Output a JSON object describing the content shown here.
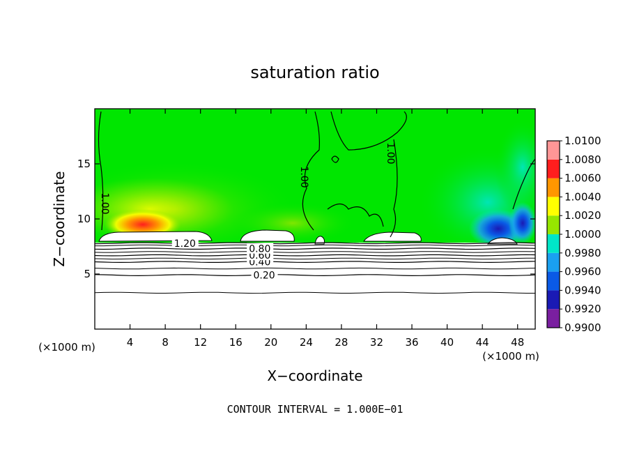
{
  "chart_data": {
    "type": "heatmap",
    "title": "saturation ratio",
    "xlabel": "X−coordinate",
    "ylabel": "Z−coordinate",
    "x_unit": "(×1000 m)",
    "y_unit": "(×1000 m)",
    "xlim": [
      0,
      50
    ],
    "ylim": [
      0,
      20
    ],
    "x_ticks": [
      4,
      8,
      12,
      16,
      20,
      24,
      28,
      32,
      36,
      40,
      44,
      48
    ],
    "y_ticks": [
      5,
      10,
      15
    ],
    "footer": "CONTOUR INTERVAL = 1.000E−01",
    "colorbar": {
      "values": [
        0.99,
        0.992,
        0.994,
        0.996,
        0.998,
        1.0,
        1.002,
        1.004,
        1.006,
        1.008,
        1.01
      ],
      "labels": [
        "0.9900",
        "0.9920",
        "0.9940",
        "0.9960",
        "0.9980",
        "1.0000",
        "1.0020",
        "1.0040",
        "1.0060",
        "1.0080",
        "1.0100"
      ],
      "colors": [
        "#7a1fa0",
        "#1a1ab4",
        "#0a5ae6",
        "#1aa0f0",
        "#00e6c8",
        "#00e600",
        "#96e600",
        "#ffff00",
        "#ff9600",
        "#ff1e1e",
        "#ff9696"
      ]
    },
    "contour_levels": [
      {
        "label": "0.20",
        "z": 4.9,
        "label_x": 18
      },
      {
        "label": "0.40",
        "z": 6.1,
        "label_x": 17.5
      },
      {
        "label": "0.60",
        "z": 6.7,
        "label_x": 17.5
      },
      {
        "label": "0.80",
        "z": 7.3,
        "label_x": 17.5
      },
      {
        "label": "1.20",
        "z": 7.8,
        "label_x": 9
      }
    ],
    "field_regions": [
      {
        "name": "supersaturated",
        "x": [
          3,
          9
        ],
        "z": [
          8.5,
          11
        ],
        "value": 1.006
      },
      {
        "name": "subsaturated",
        "x": [
          42,
          49
        ],
        "z": [
          7.5,
          12
        ],
        "value": 0.993
      }
    ]
  }
}
